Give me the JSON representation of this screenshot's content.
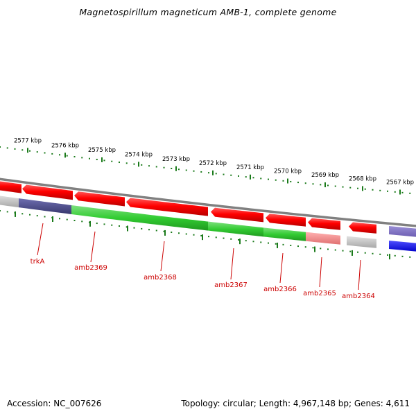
{
  "title": "Magnetospirillum magneticum AMB-1, complete genome",
  "footer": {
    "accession": "Accession: NC_007626",
    "summary": "Topology: circular; Length: 4,967,148 bp; Genes: 4,611"
  },
  "scale_labels": [
    "2577 kbp",
    "2576 kbp",
    "2575 kbp",
    "2574 kbp",
    "2573 kbp",
    "2572 kbp",
    "2571 kbp",
    "2570 kbp",
    "2569 kbp",
    "2568 kbp",
    "2567 kbp"
  ],
  "gene_labels": [
    "trkA",
    "amb2369",
    "amb2368",
    "amb2367",
    "amb2366",
    "amb2365",
    "amb2364"
  ],
  "colors": {
    "red_feature": "#ff0000",
    "green_feature": "#33cc33",
    "navy_feature": "#4b4b8c",
    "blue_feature": "#0000ff",
    "backbone": "#808080",
    "tick": "#1a7a1a",
    "gene_label": "#cc0000",
    "pale_red": "#f08080",
    "light_grey": "#c8c8c8"
  }
}
